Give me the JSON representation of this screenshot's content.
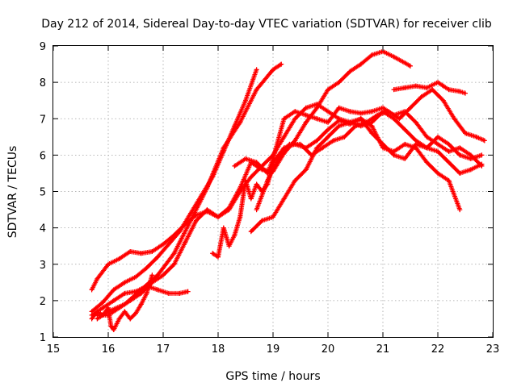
{
  "chart_data": {
    "type": "scatter",
    "title": "Day 212 of 2014, Sidereal Day-to-day VTEC variation (SDTVAR) for receiver clib",
    "xlabel": "GPS time / hours",
    "ylabel": "SDTVAR / TECUs",
    "xlim": [
      15,
      23
    ],
    "ylim": [
      1,
      9
    ],
    "xticks": [
      15,
      16,
      17,
      18,
      19,
      20,
      21,
      22,
      23
    ],
    "yticks": [
      1,
      2,
      3,
      4,
      5,
      6,
      7,
      8,
      9
    ],
    "grid": true,
    "marker": "+",
    "color": "#ff0000",
    "series": [
      {
        "name": "s1",
        "x": [
          15.7,
          15.8,
          16.0,
          16.2,
          16.4,
          16.6,
          16.8,
          17.0,
          17.2,
          17.4,
          17.6,
          17.8,
          18.0,
          18.2,
          18.4,
          18.6,
          18.8,
          19.0,
          19.2,
          19.4,
          19.6,
          19.8,
          20.0,
          20.2,
          20.4,
          20.6,
          20.8,
          21.0,
          21.2,
          21.5
        ],
        "y": [
          2.3,
          2.6,
          3.0,
          3.15,
          3.35,
          3.3,
          3.35,
          3.55,
          3.8,
          4.1,
          4.35,
          4.45,
          4.3,
          4.55,
          5.1,
          5.8,
          5.6,
          5.55,
          6.05,
          6.4,
          6.9,
          7.3,
          7.8,
          8.0,
          8.3,
          8.5,
          8.75,
          8.85,
          8.7,
          8.45
        ]
      },
      {
        "name": "s2",
        "x": [
          15.7,
          15.9,
          16.1,
          16.3,
          16.5,
          16.7,
          16.9,
          17.1,
          17.3,
          17.5,
          17.7,
          17.9,
          18.1,
          18.3,
          18.5,
          18.7
        ],
        "y": [
          1.7,
          1.95,
          2.3,
          2.5,
          2.65,
          2.9,
          3.2,
          3.55,
          3.9,
          4.4,
          4.9,
          5.4,
          6.1,
          6.8,
          7.5,
          8.35
        ]
      },
      {
        "name": "s3",
        "x": [
          15.8,
          16.0,
          16.3,
          16.6,
          16.9,
          17.2,
          17.5,
          17.8,
          18.1,
          18.4,
          18.7,
          19.0,
          19.15
        ],
        "y": [
          1.5,
          1.7,
          1.9,
          2.3,
          2.7,
          3.3,
          4.2,
          5.1,
          6.2,
          6.9,
          7.8,
          8.35,
          8.5
        ]
      },
      {
        "name": "s4",
        "x": [
          15.7,
          15.9,
          16.1,
          16.3,
          16.5,
          16.7,
          16.9,
          17.1,
          17.3,
          17.45
        ],
        "y": [
          1.6,
          1.8,
          2.0,
          2.2,
          2.25,
          2.4,
          2.3,
          2.2,
          2.2,
          2.25
        ]
      },
      {
        "name": "s5",
        "x": [
          17.9,
          18.0,
          18.1,
          18.2,
          18.3,
          18.4,
          18.5,
          18.6,
          18.7,
          18.8,
          18.9,
          19.0,
          19.2,
          19.4,
          19.6,
          19.8,
          20.0,
          20.2,
          20.4,
          20.6,
          20.8,
          21.0,
          21.2,
          21.4,
          21.6,
          21.8,
          22.0,
          22.2,
          22.4,
          22.6,
          22.8
        ],
        "y": [
          3.3,
          3.2,
          4.0,
          3.5,
          3.8,
          4.3,
          5.3,
          4.8,
          5.2,
          5.0,
          5.2,
          5.8,
          6.2,
          6.3,
          6.2,
          6.4,
          6.7,
          6.95,
          6.85,
          7.0,
          6.6,
          6.3,
          6.0,
          5.9,
          6.3,
          6.2,
          6.1,
          5.8,
          5.5,
          5.6,
          5.75
        ]
      },
      {
        "name": "s6",
        "x": [
          18.3,
          18.5,
          18.7,
          18.9,
          19.0,
          19.2,
          19.4,
          19.6,
          19.8,
          20.0,
          20.2,
          20.4,
          20.6,
          20.8,
          21.0,
          21.2,
          21.4,
          21.6,
          21.8,
          22.0,
          22.2,
          22.4,
          22.6,
          22.8
        ],
        "y": [
          5.7,
          5.9,
          5.8,
          5.5,
          5.9,
          7.0,
          7.2,
          7.1,
          7.0,
          6.9,
          7.3,
          7.2,
          7.15,
          7.2,
          7.3,
          7.1,
          7.2,
          6.9,
          6.5,
          6.3,
          6.1,
          6.2,
          6.0,
          5.7
        ]
      },
      {
        "name": "s7",
        "x": [
          18.7,
          18.9,
          19.1,
          19.3,
          19.5,
          19.7,
          19.9,
          20.1,
          20.3,
          20.5,
          20.7,
          20.9,
          21.1,
          21.3,
          21.5,
          21.7,
          21.9,
          22.1,
          22.3,
          22.5,
          22.7,
          22.85
        ],
        "y": [
          4.5,
          5.3,
          5.9,
          6.3,
          6.3,
          6.0,
          6.2,
          6.4,
          6.5,
          6.8,
          6.9,
          7.1,
          7.2,
          7.0,
          7.3,
          7.6,
          7.8,
          7.5,
          7.0,
          6.6,
          6.5,
          6.4
        ]
      },
      {
        "name": "s8",
        "x": [
          18.6,
          18.8,
          19.0,
          19.2,
          19.4,
          19.6,
          19.8,
          20.0,
          20.2,
          20.4,
          20.6,
          20.8,
          21.0,
          21.2,
          21.4,
          21.6,
          21.8,
          22.0,
          22.2,
          22.4
        ],
        "y": [
          3.9,
          4.2,
          4.3,
          4.8,
          5.3,
          5.6,
          6.2,
          6.5,
          6.8,
          6.9,
          7.0,
          6.8,
          6.2,
          6.1,
          6.3,
          6.2,
          5.8,
          5.5,
          5.3,
          4.5
        ]
      },
      {
        "name": "s9",
        "x": [
          21.2,
          21.4,
          21.6,
          21.8,
          22.0,
          22.1,
          22.2,
          22.4,
          22.5
        ],
        "y": [
          7.8,
          7.85,
          7.9,
          7.85,
          8.0,
          7.9,
          7.8,
          7.75,
          7.7
        ]
      },
      {
        "name": "s10",
        "x": [
          15.7,
          15.8,
          15.9,
          16.0,
          16.05,
          16.1,
          16.2,
          16.3,
          16.4,
          16.5,
          16.6,
          16.7,
          16.8
        ],
        "y": [
          1.5,
          1.7,
          1.6,
          1.8,
          1.3,
          1.2,
          1.5,
          1.7,
          1.5,
          1.65,
          1.9,
          2.2,
          2.7
        ]
      },
      {
        "name": "s11",
        "x": [
          15.8,
          16.0,
          16.2,
          16.4,
          16.6,
          16.8,
          17.0,
          17.2,
          17.4,
          17.6,
          17.8,
          18.0,
          18.2,
          18.4,
          18.6,
          18.8,
          19.0,
          19.2,
          19.4,
          19.6,
          19.8,
          20.0,
          20.2,
          20.4,
          20.6,
          20.8,
          21.0,
          21.2,
          21.4,
          21.6,
          21.8,
          22.0,
          22.2,
          22.4,
          22.6,
          22.8
        ],
        "y": [
          1.6,
          1.6,
          1.8,
          2.0,
          2.2,
          2.5,
          2.7,
          3.0,
          3.6,
          4.2,
          4.5,
          4.3,
          4.5,
          5.0,
          5.4,
          5.7,
          6.0,
          6.5,
          7.0,
          7.3,
          7.4,
          7.2,
          7.0,
          6.9,
          6.8,
          6.9,
          7.2,
          7.0,
          6.7,
          6.4,
          6.2,
          6.5,
          6.3,
          6.0,
          5.9,
          6.0
        ]
      }
    ]
  }
}
